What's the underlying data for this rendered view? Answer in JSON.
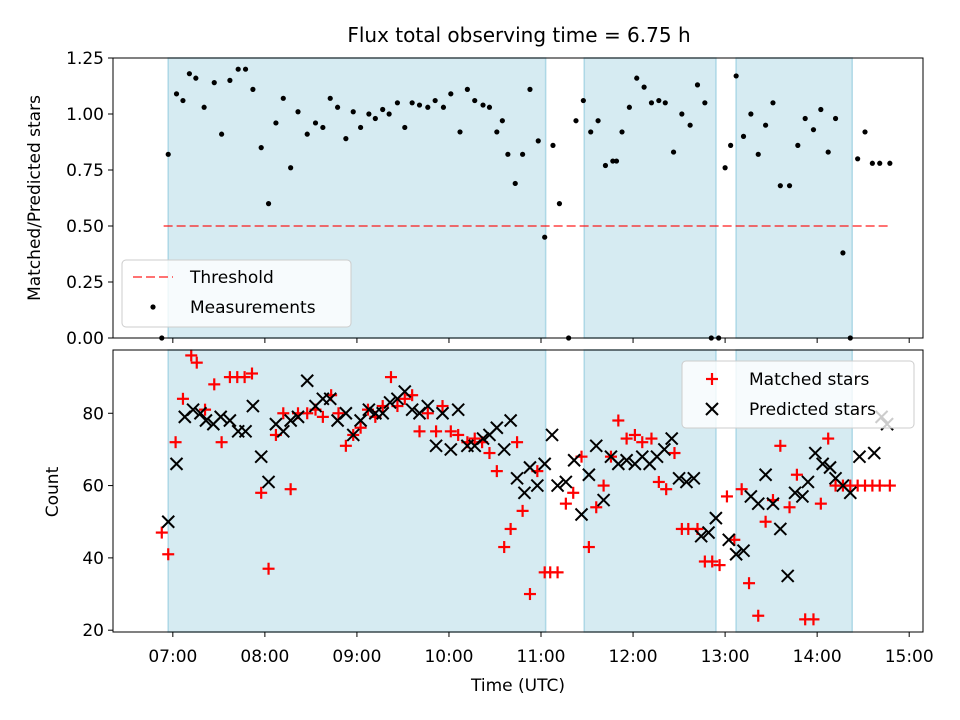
{
  "title": "Flux total observing time = 6.75 h",
  "colors": {
    "band": "#add8e6",
    "threshold": "#ff0000",
    "measurement": "#000000",
    "matched": "#ff0000",
    "predicted": "#000000"
  },
  "chart_data": [
    {
      "type": "scatter",
      "panel": "top",
      "xlabel": "",
      "ylabel": "Matched/Predicted stars",
      "xlim": [
        6.35,
        15.15
      ],
      "ylim": [
        0,
        1.25
      ],
      "yticks": [
        0.0,
        0.25,
        0.5,
        0.75,
        1.0,
        1.25
      ],
      "ytick_labels": [
        "0.00",
        "0.25",
        "0.50",
        "0.75",
        "1.00",
        "1.25"
      ],
      "legend": {
        "position": "lower left",
        "entries": [
          "Threshold",
          "Measurements"
        ]
      },
      "shaded_intervals": [
        [
          6.95,
          11.05
        ],
        [
          11.47,
          12.9
        ],
        [
          13.12,
          14.38
        ]
      ],
      "threshold": {
        "name": "Threshold",
        "value": 0.5,
        "x_range": [
          6.9,
          14.8
        ],
        "style": "dashed"
      },
      "series": [
        {
          "name": "Measurements",
          "marker": "dot",
          "x": [
            6.88,
            6.95,
            7.04,
            7.11,
            7.18,
            7.25,
            7.34,
            7.45,
            7.53,
            7.62,
            7.71,
            7.79,
            7.87,
            7.96,
            8.04,
            8.12,
            8.2,
            8.28,
            8.36,
            8.46,
            8.55,
            8.63,
            8.71,
            8.79,
            8.88,
            8.96,
            9.04,
            9.13,
            9.2,
            9.28,
            9.35,
            9.44,
            9.52,
            9.6,
            9.68,
            9.77,
            9.85,
            9.94,
            10.02,
            10.12,
            10.2,
            10.28,
            10.37,
            10.44,
            10.52,
            10.58,
            10.64,
            10.72,
            10.8,
            10.88,
            10.97,
            11.04,
            11.13,
            11.2,
            11.3,
            11.38,
            11.46,
            11.54,
            11.62,
            11.7,
            11.78,
            11.82,
            11.88,
            11.96,
            12.04,
            12.12,
            12.2,
            12.28,
            12.35,
            12.44,
            12.53,
            12.62,
            12.7,
            12.78,
            12.85,
            12.93,
            13.0,
            13.06,
            13.12,
            13.2,
            13.28,
            13.36,
            13.44,
            13.52,
            13.6,
            13.7,
            13.79,
            13.87,
            13.96,
            14.04,
            14.12,
            14.2,
            14.28,
            14.36,
            14.44,
            14.52,
            14.6,
            14.68,
            14.79
          ],
          "y": [
            0.0,
            0.82,
            1.09,
            1.06,
            1.18,
            1.16,
            1.03,
            1.14,
            0.91,
            1.15,
            1.2,
            1.2,
            1.11,
            0.85,
            0.6,
            0.96,
            1.07,
            0.76,
            1.01,
            0.91,
            0.96,
            0.94,
            1.07,
            1.03,
            0.89,
            1.01,
            0.94,
            1.0,
            0.98,
            1.02,
            1.0,
            1.05,
            0.94,
            1.05,
            1.04,
            1.03,
            1.06,
            1.03,
            1.09,
            0.92,
            1.11,
            1.06,
            1.04,
            1.03,
            0.92,
            0.97,
            0.82,
            0.69,
            0.82,
            1.11,
            0.88,
            0.45,
            0.86,
            0.6,
            0.0,
            0.97,
            1.06,
            0.92,
            0.97,
            0.77,
            0.79,
            0.79,
            0.92,
            1.03,
            1.16,
            1.12,
            1.05,
            1.06,
            1.05,
            0.83,
            1.0,
            0.95,
            1.13,
            1.05,
            0.0,
            0.0,
            0.76,
            0.86,
            1.17,
            0.9,
            1.0,
            0.82,
            0.95,
            1.05,
            0.68,
            0.68,
            0.86,
            0.98,
            0.93,
            1.02,
            0.83,
            0.98,
            0.38,
            0.0,
            0.8,
            0.92,
            0.78,
            0.78,
            0.78
          ]
        }
      ]
    },
    {
      "type": "scatter",
      "panel": "bottom",
      "xlabel": "Time (UTC)",
      "ylabel": "Count",
      "xlim": [
        6.35,
        15.15
      ],
      "ylim": [
        19.5,
        97.5
      ],
      "xticks": [
        7,
        8,
        9,
        10,
        11,
        12,
        13,
        14,
        15
      ],
      "xtick_labels": [
        "07:00",
        "08:00",
        "09:00",
        "10:00",
        "11:00",
        "12:00",
        "13:00",
        "14:00",
        "15:00"
      ],
      "yticks": [
        20,
        40,
        60,
        80
      ],
      "ytick_labels": [
        "20",
        "40",
        "60",
        "80"
      ],
      "legend": {
        "position": "upper right",
        "entries": [
          "Matched stars",
          "Predicted stars"
        ]
      },
      "shaded_intervals": [
        [
          6.95,
          11.05
        ],
        [
          11.47,
          12.9
        ],
        [
          13.12,
          14.38
        ]
      ],
      "series": [
        {
          "name": "Matched stars",
          "marker": "plus",
          "x": [
            6.88,
            6.95,
            7.03,
            7.11,
            7.2,
            7.26,
            7.35,
            7.45,
            7.53,
            7.62,
            7.7,
            7.78,
            7.86,
            7.96,
            8.04,
            8.12,
            8.2,
            8.28,
            8.36,
            8.46,
            8.55,
            8.63,
            8.72,
            8.8,
            8.88,
            8.96,
            9.04,
            9.12,
            9.2,
            9.28,
            9.37,
            9.44,
            9.52,
            9.6,
            9.68,
            9.77,
            9.86,
            9.93,
            10.02,
            10.1,
            10.2,
            10.28,
            10.36,
            10.44,
            10.52,
            10.6,
            10.67,
            10.74,
            10.8,
            10.88,
            10.96,
            11.04,
            11.1,
            11.18,
            11.27,
            11.35,
            11.44,
            11.52,
            11.6,
            11.68,
            11.76,
            11.84,
            11.93,
            12.02,
            12.1,
            12.2,
            12.28,
            12.36,
            12.45,
            12.53,
            12.6,
            12.7,
            12.78,
            12.86,
            12.94,
            13.02,
            13.1,
            13.18,
            13.26,
            13.36,
            13.44,
            13.52,
            13.6,
            13.7,
            13.78,
            13.87,
            13.96,
            14.04,
            14.12,
            14.2,
            14.28,
            14.36,
            14.44,
            14.52,
            14.6,
            14.68,
            14.79
          ],
          "y": [
            47,
            41,
            72,
            84,
            96,
            94,
            81,
            88,
            72,
            90,
            90,
            90,
            91,
            58,
            37,
            74,
            80,
            59,
            80,
            80,
            81,
            79,
            85,
            80,
            71,
            74,
            76,
            81,
            79,
            82,
            90,
            82,
            84,
            85,
            75,
            80,
            75,
            82,
            75,
            74,
            72,
            73,
            72,
            69,
            64,
            43,
            48,
            72,
            53,
            30,
            64,
            36,
            36,
            36,
            55,
            58,
            68,
            43,
            54,
            60,
            68,
            78,
            73,
            74,
            72,
            73,
            61,
            59,
            69,
            48,
            48,
            48,
            39,
            39,
            38,
            57,
            45,
            59,
            33,
            24,
            50,
            56,
            71,
            54,
            63,
            23,
            23,
            55,
            73,
            60,
            60,
            60,
            60,
            60,
            60,
            60,
            60
          ],
          "__note_trim": true
        },
        {
          "name": "Predicted stars",
          "marker": "x",
          "x": [
            6.95,
            7.04,
            7.13,
            7.22,
            7.3,
            7.36,
            7.44,
            7.52,
            7.62,
            7.71,
            7.79,
            7.87,
            7.96,
            8.04,
            8.12,
            8.2,
            8.28,
            8.36,
            8.46,
            8.55,
            8.63,
            8.71,
            8.79,
            8.88,
            8.96,
            9.04,
            9.13,
            9.2,
            9.28,
            9.36,
            9.44,
            9.52,
            9.6,
            9.68,
            9.77,
            9.86,
            9.93,
            10.02,
            10.1,
            10.2,
            10.28,
            10.37,
            10.44,
            10.52,
            10.6,
            10.67,
            10.74,
            10.82,
            10.88,
            10.96,
            11.04,
            11.12,
            11.18,
            11.27,
            11.36,
            11.44,
            11.52,
            11.6,
            11.68,
            11.76,
            11.84,
            11.93,
            12.02,
            12.1,
            12.18,
            12.26,
            12.34,
            12.42,
            12.5,
            12.58,
            12.66,
            12.74,
            12.82,
            12.9,
            13.04,
            13.12,
            13.2,
            13.28,
            13.36,
            13.44,
            13.52,
            13.6,
            13.68,
            13.76,
            13.84,
            13.9,
            13.98,
            14.06,
            14.14,
            14.2,
            14.28,
            14.36,
            14.46,
            14.62,
            14.7,
            14.76
          ],
          "y": [
            50,
            66,
            79,
            81,
            80,
            78,
            77,
            79,
            78,
            75,
            75,
            82,
            68,
            61,
            77,
            75,
            78,
            79,
            89,
            82,
            84,
            84,
            78,
            80,
            74,
            78,
            81,
            80,
            80,
            83,
            84,
            86,
            81,
            80,
            82,
            71,
            80,
            70,
            81,
            71,
            71,
            73,
            74,
            76,
            70,
            78,
            62,
            58,
            65,
            60,
            66,
            74,
            60,
            61,
            67,
            52,
            63,
            71,
            56,
            68,
            66,
            67,
            66,
            68,
            66,
            68,
            70,
            73,
            62,
            61,
            62,
            46,
            47,
            51,
            45,
            41,
            42,
            57,
            55,
            63,
            55,
            48,
            35,
            58,
            57,
            61,
            69,
            66,
            65,
            62,
            60,
            58,
            68,
            69,
            79,
            77
          ]
        }
      ]
    }
  ]
}
